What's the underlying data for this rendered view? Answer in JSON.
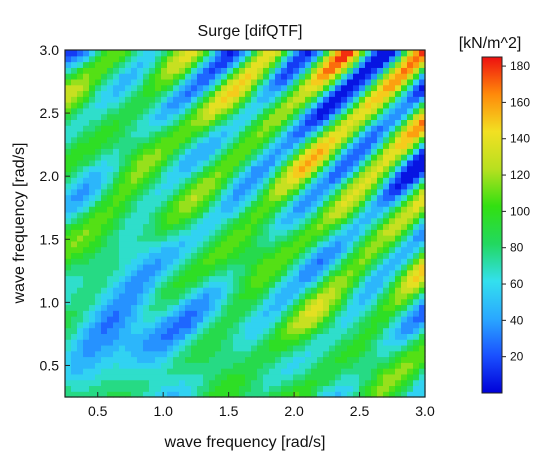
{
  "chart_data": {
    "type": "heatmap",
    "title": "Surge [difQTF]",
    "xlabel": "wave frequency [rad/s]",
    "ylabel": "wave frequency [rad/s]",
    "xlim": [
      0.25,
      3.0
    ],
    "ylim": [
      0.25,
      3.0
    ],
    "x_ticks": [
      "0.5",
      "1.0",
      "1.5",
      "2.0",
      "2.5",
      "3.0"
    ],
    "y_ticks": [
      "0.5",
      "1.0",
      "1.5",
      "2.0",
      "2.5",
      "3.0"
    ],
    "colorbar": {
      "label": "[kN/m^2]",
      "range": [
        0,
        185
      ],
      "ticks": [
        "20",
        "40",
        "60",
        "80",
        "100",
        "120",
        "140",
        "160",
        "180"
      ],
      "colors": [
        "#0000d8",
        "#1a50ff",
        "#2aa8ff",
        "#33e0ee",
        "#22d860",
        "#32e011",
        "#b8e020",
        "#f2e022",
        "#ff8a0a",
        "#ee1010"
      ]
    },
    "contours": true,
    "pattern": "diagonal bands parallel to x = y, intensifying toward the upper right; low-value region around x ≈ 0.8, y ≈ 0.8",
    "value_range_shown": [
      5,
      185
    ]
  }
}
